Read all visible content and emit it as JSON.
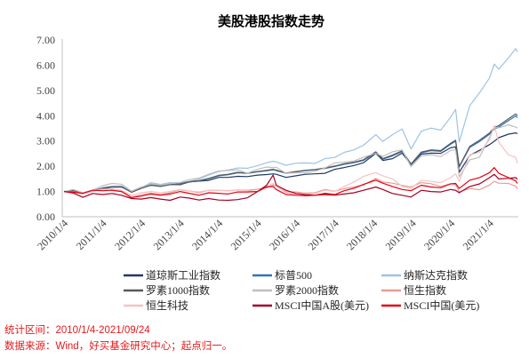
{
  "chart_data": {
    "type": "line",
    "title": "美股港股指数走势",
    "xlabel": "",
    "ylabel": "",
    "ylim": [
      0,
      7
    ],
    "xlim": [
      "2010-01-04",
      "2021-09-24"
    ],
    "yticks": [
      "0.00",
      "1.00",
      "2.00",
      "3.00",
      "4.00",
      "5.00",
      "6.00",
      "7.00"
    ],
    "xticks": [
      "2010/1/4",
      "2011/1/4",
      "2012/1/4",
      "2013/1/4",
      "2014/1/4",
      "2015/1/4",
      "2016/1/4",
      "2017/1/4",
      "2018/1/4",
      "2019/1/4",
      "2020/1/4",
      "2021/1/4"
    ],
    "grid": false,
    "legend": "bottom",
    "x": [
      "2010-01-04",
      "2010-04-01",
      "2010-07-01",
      "2010-10-01",
      "2011-01-04",
      "2011-04-01",
      "2011-07-01",
      "2011-10-03",
      "2012-01-04",
      "2012-04-02",
      "2012-07-02",
      "2012-10-01",
      "2013-01-04",
      "2013-04-01",
      "2013-07-01",
      "2013-10-01",
      "2014-01-03",
      "2014-04-01",
      "2014-07-01",
      "2014-10-01",
      "2015-01-05",
      "2015-04-01",
      "2015-06-01",
      "2015-07-01",
      "2015-10-01",
      "2016-01-04",
      "2016-04-01",
      "2016-07-01",
      "2016-10-03",
      "2017-01-03",
      "2017-04-03",
      "2017-07-03",
      "2017-10-02",
      "2018-01-26",
      "2018-04-02",
      "2018-07-02",
      "2018-10-01",
      "2018-12-24",
      "2019-04-01",
      "2019-07-01",
      "2019-10-01",
      "2020-01-02",
      "2020-02-19",
      "2020-03-23",
      "2020-07-01",
      "2020-10-01",
      "2021-01-04",
      "2021-02-17",
      "2021-04-01",
      "2021-07-01",
      "2021-09-07",
      "2021-09-24"
    ],
    "series": [
      {
        "name": "道琼斯工业指数",
        "color": "#203864",
        "values": [
          1.0,
          1.03,
          0.92,
          1.02,
          1.1,
          1.17,
          1.17,
          1.01,
          1.17,
          1.25,
          1.22,
          1.28,
          1.27,
          1.38,
          1.41,
          1.44,
          1.56,
          1.56,
          1.6,
          1.59,
          1.65,
          1.67,
          1.7,
          1.68,
          1.56,
          1.62,
          1.68,
          1.7,
          1.72,
          1.88,
          1.95,
          2.03,
          2.14,
          2.51,
          2.23,
          2.3,
          2.52,
          2.06,
          2.48,
          2.52,
          2.51,
          2.73,
          2.77,
          1.76,
          2.43,
          2.63,
          2.86,
          2.99,
          3.13,
          3.27,
          3.32,
          3.29
        ]
      },
      {
        "name": "标普500",
        "color": "#2e75b6",
        "values": [
          1.0,
          1.04,
          0.91,
          1.01,
          1.12,
          1.18,
          1.18,
          0.97,
          1.13,
          1.25,
          1.2,
          1.27,
          1.29,
          1.38,
          1.42,
          1.5,
          1.62,
          1.66,
          1.74,
          1.72,
          1.78,
          1.82,
          1.86,
          1.83,
          1.72,
          1.78,
          1.83,
          1.86,
          1.91,
          1.99,
          2.08,
          2.14,
          2.23,
          2.54,
          2.28,
          2.41,
          2.58,
          2.07,
          2.53,
          2.62,
          2.59,
          2.87,
          2.99,
          1.97,
          2.75,
          2.98,
          3.27,
          3.47,
          3.55,
          3.81,
          3.99,
          3.93
        ]
      },
      {
        "name": "纳斯达克指数",
        "color": "#9dc3e6",
        "values": [
          1.0,
          1.04,
          0.91,
          1.03,
          1.16,
          1.21,
          1.22,
          1.01,
          1.15,
          1.35,
          1.28,
          1.35,
          1.34,
          1.4,
          1.49,
          1.65,
          1.79,
          1.85,
          1.93,
          1.92,
          2.02,
          2.14,
          2.2,
          2.17,
          2.04,
          2.12,
          2.13,
          2.11,
          2.3,
          2.35,
          2.55,
          2.65,
          2.83,
          3.25,
          2.98,
          3.25,
          3.48,
          2.68,
          3.39,
          3.51,
          3.43,
          3.94,
          4.25,
          2.97,
          4.4,
          4.91,
          5.5,
          6.05,
          5.84,
          6.29,
          6.66,
          6.52
        ]
      },
      {
        "name": "罗素1000指数",
        "color": "#595959",
        "values": [
          1.0,
          1.04,
          0.91,
          1.02,
          1.13,
          1.19,
          1.19,
          0.97,
          1.13,
          1.26,
          1.21,
          1.28,
          1.3,
          1.39,
          1.43,
          1.52,
          1.64,
          1.68,
          1.76,
          1.73,
          1.79,
          1.84,
          1.88,
          1.85,
          1.73,
          1.79,
          1.84,
          1.87,
          1.93,
          2.01,
          2.1,
          2.16,
          2.26,
          2.57,
          2.3,
          2.44,
          2.61,
          2.09,
          2.56,
          2.65,
          2.62,
          2.91,
          3.03,
          1.99,
          2.79,
          3.03,
          3.32,
          3.53,
          3.61,
          3.88,
          4.07,
          4.01
        ]
      },
      {
        "name": "罗素2000指数",
        "color": "#bfbfbf",
        "values": [
          1.0,
          1.08,
          0.95,
          1.06,
          1.23,
          1.32,
          1.29,
          1.01,
          1.17,
          1.3,
          1.25,
          1.31,
          1.36,
          1.47,
          1.53,
          1.68,
          1.81,
          1.83,
          1.86,
          1.72,
          1.88,
          1.97,
          1.95,
          1.96,
          1.72,
          1.74,
          1.74,
          1.8,
          1.93,
          2.13,
          2.16,
          2.21,
          2.36,
          2.51,
          2.39,
          2.57,
          2.65,
          1.98,
          2.41,
          2.45,
          2.38,
          2.62,
          2.65,
          1.58,
          2.25,
          2.36,
          3.15,
          3.53,
          3.52,
          3.64,
          3.55,
          3.51
        ]
      },
      {
        "name": "恒生指数",
        "color": "#e99c96",
        "values": [
          1.0,
          0.97,
          0.91,
          1.02,
          1.09,
          1.09,
          1.03,
          0.77,
          0.87,
          0.94,
          0.88,
          0.95,
          1.07,
          1.02,
          0.95,
          1.05,
          1.05,
          1.03,
          1.06,
          1.05,
          1.09,
          1.15,
          1.26,
          1.2,
          0.99,
          0.98,
          0.94,
          0.95,
          1.08,
          1.01,
          1.11,
          1.18,
          1.26,
          1.52,
          1.38,
          1.33,
          1.24,
          1.18,
          1.35,
          1.31,
          1.2,
          1.31,
          1.27,
          0.99,
          1.12,
          1.07,
          1.26,
          1.4,
          1.33,
          1.32,
          1.21,
          1.11
        ]
      },
      {
        "name": "恒生科技",
        "color": "#f5c2c2",
        "values": [
          1.0,
          0.98,
          0.92,
          1.02,
          1.08,
          1.1,
          1.05,
          0.85,
          0.95,
          1.0,
          0.95,
          1.0,
          1.08,
          1.02,
          0.98,
          1.05,
          1.05,
          1.02,
          1.06,
          1.03,
          1.0,
          1.2,
          1.32,
          1.2,
          0.95,
          0.9,
          0.88,
          0.92,
          1.05,
          1.0,
          1.2,
          1.38,
          1.6,
          1.75,
          1.62,
          1.5,
          1.2,
          1.12,
          1.45,
          1.4,
          1.35,
          1.55,
          1.7,
          1.4,
          2.45,
          2.55,
          3.05,
          3.62,
          2.95,
          2.45,
          2.35,
          2.12
        ]
      },
      {
        "name": "MSCI中国A股(美元)",
        "color": "#a50021",
        "values": [
          1.0,
          0.94,
          0.77,
          0.92,
          0.88,
          0.92,
          0.85,
          0.72,
          0.7,
          0.76,
          0.7,
          0.65,
          0.78,
          0.74,
          0.66,
          0.72,
          0.66,
          0.65,
          0.68,
          0.75,
          1.0,
          1.25,
          1.65,
          1.25,
          1.05,
          0.92,
          0.88,
          0.85,
          0.88,
          0.86,
          0.9,
          0.95,
          1.05,
          1.18,
          1.08,
          0.92,
          0.85,
          0.78,
          1.05,
          1.0,
          0.98,
          1.08,
          1.05,
          0.95,
          1.2,
          1.3,
          1.55,
          1.68,
          1.5,
          1.52,
          1.55,
          1.48
        ]
      },
      {
        "name": "MSCI中国(美元)",
        "color": "#e60012",
        "values": [
          1.0,
          0.97,
          0.93,
          1.05,
          1.03,
          1.05,
          1.0,
          0.76,
          0.82,
          0.9,
          0.85,
          0.9,
          1.0,
          0.93,
          0.85,
          0.95,
          0.93,
          0.9,
          0.98,
          0.98,
          1.0,
          1.18,
          1.2,
          1.08,
          0.88,
          0.85,
          0.83,
          0.85,
          0.93,
          0.88,
          1.03,
          1.13,
          1.28,
          1.45,
          1.33,
          1.2,
          1.08,
          1.03,
          1.25,
          1.18,
          1.15,
          1.3,
          1.32,
          1.12,
          1.45,
          1.55,
          1.75,
          1.95,
          1.72,
          1.55,
          1.42,
          1.32
        ]
      }
    ]
  },
  "footer": {
    "period": "统计区间：2010/1/4-2021/09/24",
    "source": "数据来源：Wind，好买基金研究中心；起点归一。"
  }
}
